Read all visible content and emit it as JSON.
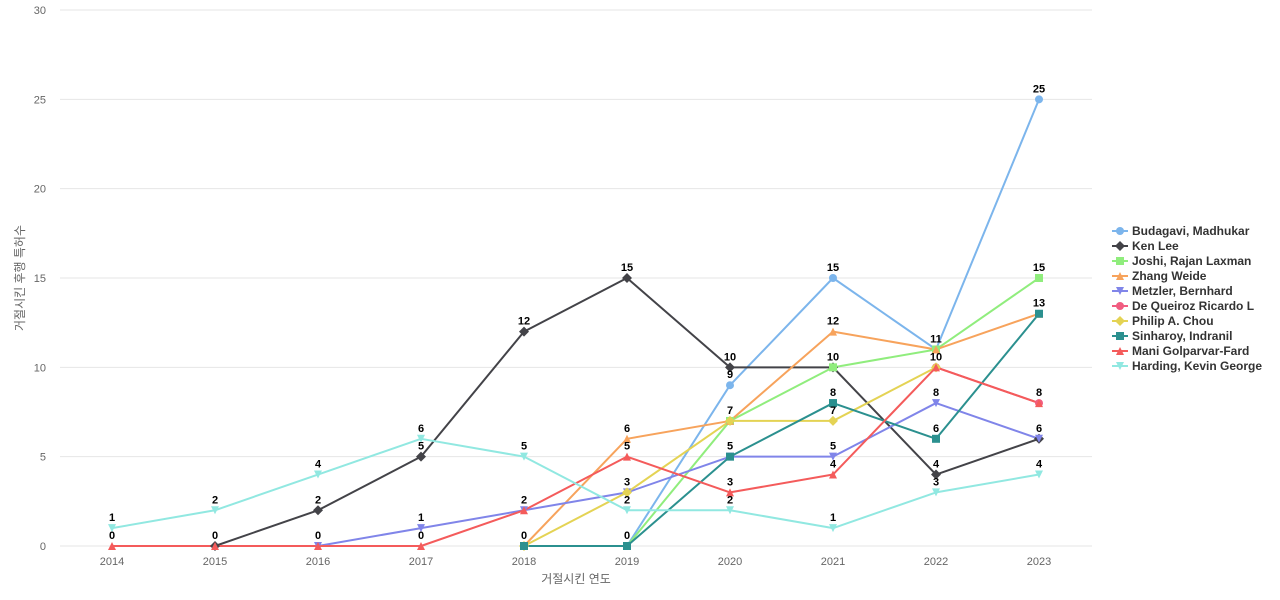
{
  "chart_data": {
    "type": "line",
    "title": "",
    "xlabel": "거절시킨 연도",
    "ylabel": "거절시킨 후행 특허수",
    "categories": [
      "2014",
      "2015",
      "2016",
      "2017",
      "2018",
      "2019",
      "2020",
      "2021",
      "2022",
      "2023"
    ],
    "ylim": [
      0,
      30
    ],
    "yticks": [
      0,
      5,
      10,
      15,
      20,
      25,
      30
    ],
    "grid": true,
    "legend_position": "right",
    "series": [
      {
        "name": "Budagavi, Madhukar",
        "color": "#7cb5ec",
        "marker": "circle",
        "values": [
          null,
          null,
          null,
          null,
          null,
          0,
          9,
          15,
          11,
          25
        ]
      },
      {
        "name": "Ken Lee",
        "color": "#434348",
        "marker": "diamond",
        "values": [
          null,
          0,
          2,
          5,
          12,
          15,
          10,
          10,
          4,
          6
        ]
      },
      {
        "name": "Joshi, Rajan Laxman",
        "color": "#90ed7d",
        "marker": "square",
        "values": [
          null,
          null,
          null,
          null,
          null,
          0,
          7,
          10,
          11,
          15
        ]
      },
      {
        "name": "Zhang Weide",
        "color": "#f7a35c",
        "marker": "triangle",
        "values": [
          null,
          null,
          null,
          null,
          0,
          6,
          7,
          12,
          11,
          13
        ]
      },
      {
        "name": "Metzler, Bernhard",
        "color": "#8085e9",
        "marker": "triangle-down",
        "values": [
          null,
          null,
          0,
          1,
          2,
          3,
          5,
          5,
          8,
          6
        ]
      },
      {
        "name": "De Queiroz Ricardo L",
        "color": "#f15c80",
        "marker": "circle",
        "values": [
          null,
          null,
          null,
          null,
          null,
          null,
          null,
          null,
          10,
          8
        ]
      },
      {
        "name": "Philip A. Chou",
        "color": "#e4d354",
        "marker": "diamond",
        "values": [
          null,
          null,
          null,
          null,
          0,
          3,
          7,
          7,
          10,
          null
        ]
      },
      {
        "name": "Sinharoy, Indranil",
        "color": "#2b908f",
        "marker": "square",
        "values": [
          null,
          null,
          null,
          null,
          0,
          0,
          5,
          8,
          6,
          13
        ]
      },
      {
        "name": "Mani Golparvar-Fard",
        "color": "#f45b5b",
        "marker": "triangle",
        "values": [
          0,
          0,
          0,
          0,
          2,
          5,
          3,
          4,
          10,
          8
        ]
      },
      {
        "name": "Harding, Kevin George",
        "color": "#91e8e1",
        "marker": "triangle-down",
        "values": [
          1,
          2,
          4,
          6,
          5,
          2,
          2,
          1,
          3,
          4
        ]
      }
    ],
    "data_labels": [
      {
        "x": "2014",
        "y": 1,
        "text": "1"
      },
      {
        "x": "2014",
        "y": 0,
        "text": "0"
      },
      {
        "x": "2015",
        "y": 2,
        "text": "2"
      },
      {
        "x": "2015",
        "y": 0,
        "text": "0"
      },
      {
        "x": "2016",
        "y": 4,
        "text": "4"
      },
      {
        "x": "2016",
        "y": 2,
        "text": "2"
      },
      {
        "x": "2016",
        "y": 0,
        "text": "0"
      },
      {
        "x": "2017",
        "y": 6,
        "text": "6"
      },
      {
        "x": "2017",
        "y": 5,
        "text": "5"
      },
      {
        "x": "2017",
        "y": 1,
        "text": "1"
      },
      {
        "x": "2017",
        "y": 0,
        "text": "0"
      },
      {
        "x": "2018",
        "y": 12,
        "text": "12"
      },
      {
        "x": "2018",
        "y": 5,
        "text": "5"
      },
      {
        "x": "2018",
        "y": 2,
        "text": "2"
      },
      {
        "x": "2018",
        "y": 0,
        "text": "0"
      },
      {
        "x": "2019",
        "y": 15,
        "text": "15"
      },
      {
        "x": "2019",
        "y": 6,
        "text": "6"
      },
      {
        "x": "2019",
        "y": 5,
        "text": "5"
      },
      {
        "x": "2019",
        "y": 3,
        "text": "3"
      },
      {
        "x": "2019",
        "y": 2,
        "text": "2"
      },
      {
        "x": "2019",
        "y": 0,
        "text": "0"
      },
      {
        "x": "2020",
        "y": 10,
        "text": "10"
      },
      {
        "x": "2020",
        "y": 9,
        "text": "9"
      },
      {
        "x": "2020",
        "y": 7,
        "text": "7"
      },
      {
        "x": "2020",
        "y": 5,
        "text": "5"
      },
      {
        "x": "2020",
        "y": 3,
        "text": "3"
      },
      {
        "x": "2020",
        "y": 2,
        "text": "2"
      },
      {
        "x": "2021",
        "y": 15,
        "text": "15"
      },
      {
        "x": "2021",
        "y": 12,
        "text": "12"
      },
      {
        "x": "2021",
        "y": 10,
        "text": "10"
      },
      {
        "x": "2021",
        "y": 8,
        "text": "8"
      },
      {
        "x": "2021",
        "y": 7,
        "text": "7"
      },
      {
        "x": "2021",
        "y": 5,
        "text": "5"
      },
      {
        "x": "2021",
        "y": 4,
        "text": "4"
      },
      {
        "x": "2021",
        "y": 1,
        "text": "1"
      },
      {
        "x": "2022",
        "y": 11,
        "text": "11"
      },
      {
        "x": "2022",
        "y": 10,
        "text": "10"
      },
      {
        "x": "2022",
        "y": 8,
        "text": "8"
      },
      {
        "x": "2022",
        "y": 6,
        "text": "6"
      },
      {
        "x": "2022",
        "y": 4,
        "text": "4"
      },
      {
        "x": "2022",
        "y": 3,
        "text": "3"
      },
      {
        "x": "2023",
        "y": 25,
        "text": "25"
      },
      {
        "x": "2023",
        "y": 15,
        "text": "15"
      },
      {
        "x": "2023",
        "y": 13,
        "text": "13"
      },
      {
        "x": "2023",
        "y": 8,
        "text": "8"
      },
      {
        "x": "2023",
        "y": 6,
        "text": "6"
      },
      {
        "x": "2023",
        "y": 4,
        "text": "4"
      }
    ]
  }
}
